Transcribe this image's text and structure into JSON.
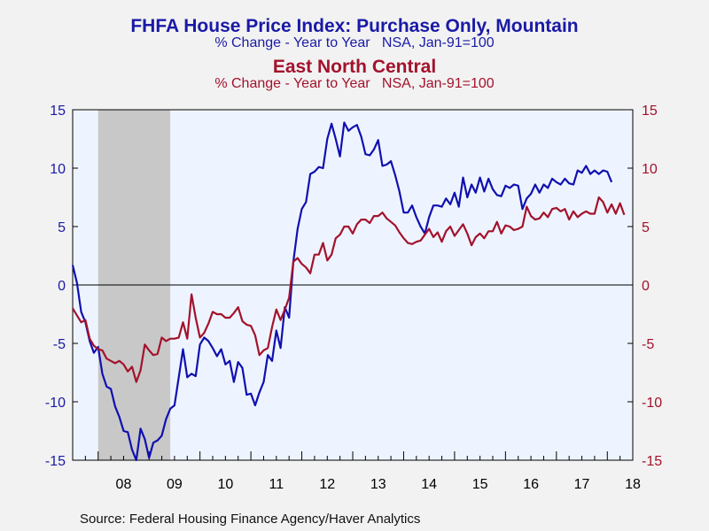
{
  "titles": {
    "series1_title": "FHFA House Price Index: Purchase Only, Mountain",
    "series1_subtitle": "% Change - Year to Year   NSA, Jan-91=100",
    "series2_title": "East North Central",
    "series2_subtitle": "% Change - Year to Year   NSA, Jan-91=100"
  },
  "source": "Source:  Federal Housing Finance Agency/Haver Analytics",
  "colors": {
    "mountain": "#1010b0",
    "east_north_central": "#a3122c",
    "plot_bg": "#eef4ff",
    "recession": "#c8c8c8",
    "left_axis": "#1a1aa6",
    "right_axis": "#a3122c"
  },
  "chart_data": {
    "type": "line",
    "x_start": "2007-07",
    "x_end": "2018-07",
    "ylim": [
      -15,
      15
    ],
    "yticks_left": [
      "15",
      "10",
      "5",
      "0",
      "-5",
      "-10",
      "-15"
    ],
    "yticks_right": [
      "15",
      "10",
      "5",
      "0",
      "-5",
      "-10",
      "-15"
    ],
    "ytick_values": [
      15,
      10,
      5,
      0,
      -5,
      -10,
      -15
    ],
    "xtick_labels": [
      "08",
      "09",
      "10",
      "11",
      "12",
      "13",
      "14",
      "15",
      "16",
      "17",
      "18"
    ],
    "recession": {
      "start": "2008-01",
      "end": "2009-06"
    },
    "zero_line": true,
    "series": [
      {
        "name": "Mountain",
        "color_key": "mountain",
        "start": "2007-07",
        "values": [
          1.7,
          0.2,
          -2.3,
          -3.2,
          -4.8,
          -5.8,
          -5.3,
          -7.6,
          -8.7,
          -8.9,
          -10.4,
          -11.3,
          -12.5,
          -12.6,
          -14.1,
          -15.0,
          -12.3,
          -13.2,
          -14.8,
          -13.5,
          -13.3,
          -12.9,
          -11.5,
          -10.6,
          -10.3,
          -7.9,
          -5.5,
          -7.9,
          -7.6,
          -7.8,
          -5.1,
          -4.5,
          -4.8,
          -5.4,
          -6.1,
          -5.5,
          -6.8,
          -6.5,
          -8.3,
          -6.6,
          -7.1,
          -9.4,
          -9.3,
          -10.3,
          -9.2,
          -8.3,
          -6.0,
          -6.5,
          -3.9,
          -5.4,
          -1.9,
          -2.8,
          2.0,
          4.8,
          6.5,
          7.1,
          9.5,
          9.7,
          10.1,
          10.0,
          12.5,
          13.8,
          12.5,
          11.0,
          13.9,
          13.2,
          13.5,
          13.7,
          12.7,
          11.2,
          11.1,
          11.6,
          12.4,
          10.2,
          10.3,
          10.6,
          9.4,
          8.0,
          6.2,
          6.2,
          6.8,
          5.8,
          5.0,
          4.4,
          5.8,
          6.8,
          6.8,
          6.7,
          7.4,
          6.9,
          7.9,
          6.7,
          9.2,
          7.5,
          8.6,
          7.9,
          9.2,
          8.0,
          9.1,
          8.2,
          7.7,
          7.6,
          8.5,
          8.3,
          8.6,
          8.5,
          6.5,
          7.4,
          7.8,
          8.6,
          7.9,
          8.6,
          8.3,
          9.1,
          8.8,
          8.6,
          9.1,
          8.7,
          8.6,
          9.8,
          9.6,
          10.2,
          9.5,
          9.8,
          9.5,
          9.8,
          9.7,
          8.8
        ]
      },
      {
        "name": "East North Central",
        "color_key": "east_north_central",
        "start": "2007-07",
        "values": [
          -2.0,
          -2.6,
          -3.2,
          -3.0,
          -4.6,
          -5.2,
          -5.5,
          -5.6,
          -6.3,
          -6.5,
          -6.7,
          -6.5,
          -6.8,
          -7.4,
          -7.0,
          -8.3,
          -7.3,
          -5.1,
          -5.6,
          -6.0,
          -5.9,
          -4.5,
          -4.8,
          -4.6,
          -4.6,
          -4.5,
          -3.2,
          -4.6,
          -0.8,
          -2.8,
          -4.5,
          -4.1,
          -3.3,
          -2.3,
          -2.5,
          -2.5,
          -2.8,
          -2.8,
          -2.4,
          -1.9,
          -3.1,
          -3.4,
          -3.5,
          -4.3,
          -6.0,
          -5.6,
          -5.4,
          -3.6,
          -2.1,
          -3.0,
          -2.1,
          -1.1,
          2.0,
          2.3,
          1.8,
          1.5,
          1.0,
          2.6,
          2.6,
          3.6,
          2.1,
          2.6,
          4.0,
          4.3,
          5.0,
          5.0,
          4.4,
          5.2,
          5.6,
          5.6,
          5.3,
          5.9,
          5.9,
          6.2,
          5.7,
          5.4,
          5.1,
          4.5,
          4.0,
          3.6,
          3.5,
          3.7,
          3.8,
          4.3,
          4.8,
          4.1,
          4.5,
          3.7,
          4.6,
          5.0,
          4.2,
          4.7,
          5.2,
          4.4,
          3.4,
          4.1,
          4.4,
          4.0,
          4.6,
          4.6,
          5.4,
          4.4,
          5.1,
          5.0,
          4.7,
          4.8,
          5.0,
          6.7,
          5.9,
          5.6,
          5.7,
          6.2,
          5.8,
          6.5,
          6.6,
          6.3,
          6.5,
          5.6,
          6.3,
          5.8,
          6.1,
          6.3,
          6.1,
          6.1,
          7.5,
          7.1,
          6.2,
          6.9,
          6.1,
          7.0,
          6.0
        ]
      }
    ]
  }
}
